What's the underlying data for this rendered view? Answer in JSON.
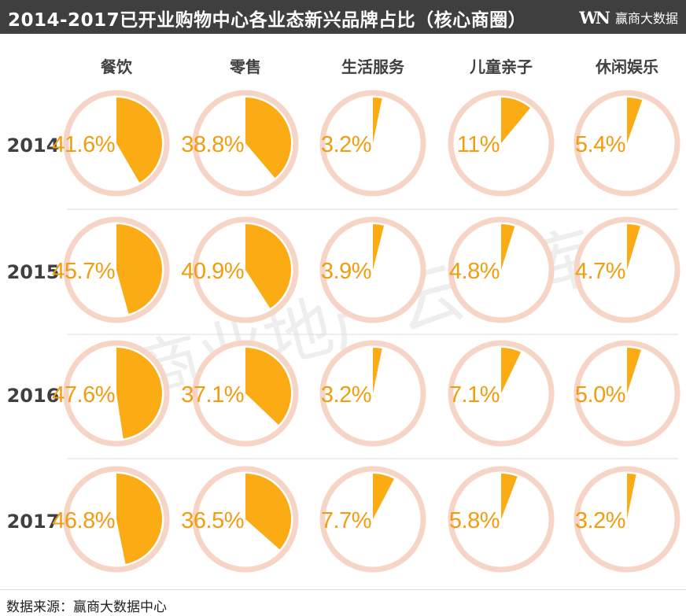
{
  "header": {
    "title": "2014-2017已开业购物中心各业态新兴品牌占比（核心商圈）",
    "logo_mark": "WN",
    "logo_text": "赢商大数据"
  },
  "watermark": "商业地产云智库",
  "source": "数据来源：赢商大数据中心",
  "colors": {
    "header_bg": "#3f3f3f",
    "slice": "#fbab14",
    "label": "#f19d10",
    "ring": "#f6d4c6",
    "year_text": "#404040",
    "category_text": "#404040",
    "divider": "#dddddd"
  },
  "chart_data": {
    "type": "pie",
    "categories": [
      "餐饮",
      "零售",
      "生活服务",
      "儿童亲子",
      "休闲娱乐"
    ],
    "rows": [
      {
        "year": "2014",
        "values": [
          41.6,
          38.8,
          3.2,
          11,
          5.4
        ],
        "labels": [
          "41.6%",
          "38.8%",
          "3.2%",
          "11%",
          "5.4%"
        ]
      },
      {
        "year": "2015",
        "values": [
          45.7,
          40.9,
          3.9,
          4.8,
          4.7
        ],
        "labels": [
          "45.7%",
          "40.9%",
          "3.9%",
          "4.8%",
          "4.7%"
        ]
      },
      {
        "year": "2016",
        "values": [
          47.6,
          37.1,
          3.2,
          7.1,
          5.0
        ],
        "labels": [
          "47.6%",
          "37.1%",
          "3.2%",
          "7.1%",
          "5.0%"
        ]
      },
      {
        "year": "2017",
        "values": [
          46.8,
          36.5,
          7.7,
          5.8,
          3.2
        ],
        "labels": [
          "46.8%",
          "36.5%",
          "7.7%",
          "5.8%",
          "3.2%"
        ]
      }
    ],
    "unit": "%"
  }
}
